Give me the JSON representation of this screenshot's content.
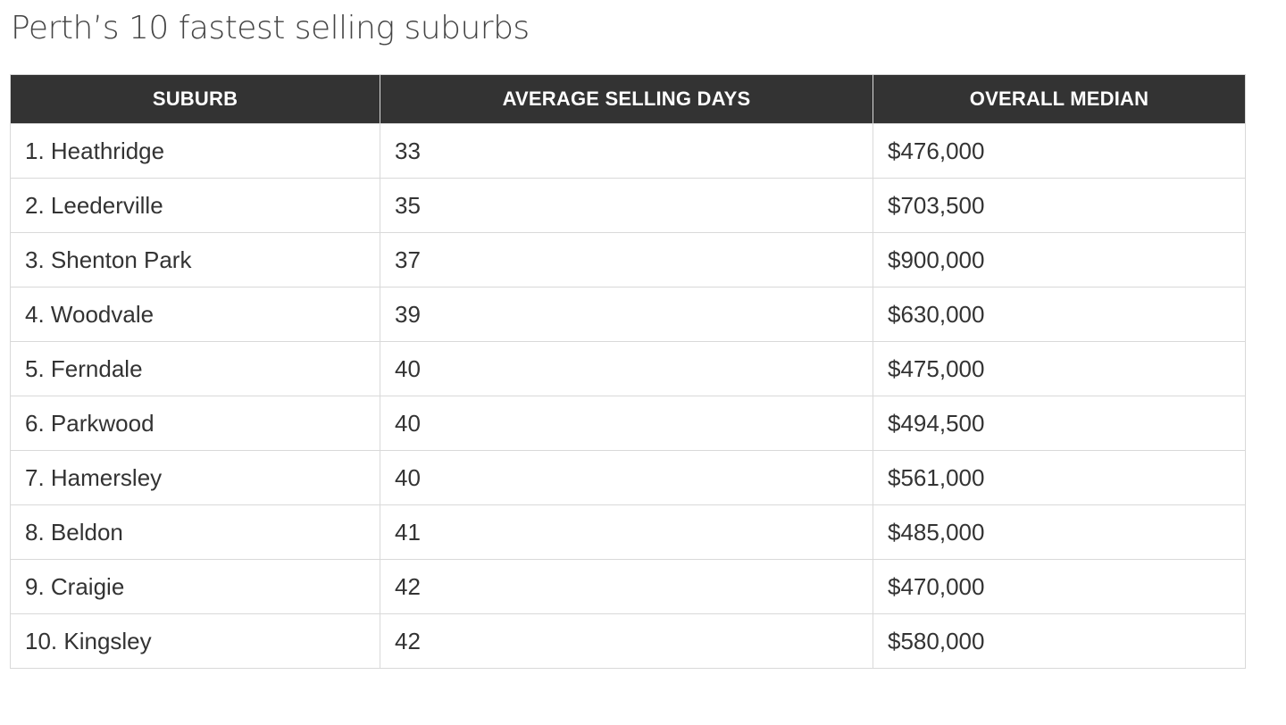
{
  "title": "Perth’s 10 fastest selling suburbs",
  "chart_data": {
    "type": "table",
    "title": "Perth’s 10 fastest selling suburbs",
    "columns": [
      "SUBURB",
      "AVERAGE SELLING DAYS",
      "OVERALL MEDIAN"
    ],
    "rows": [
      [
        "1. Heathridge",
        "33",
        "$476,000"
      ],
      [
        "2. Leederville",
        "35",
        "$703,500"
      ],
      [
        "3. Shenton Park",
        "37",
        "$900,000"
      ],
      [
        "4. Woodvale",
        "39",
        "$630,000"
      ],
      [
        "5. Ferndale",
        "40",
        "$475,000"
      ],
      [
        "6. Parkwood",
        "40",
        "$494,500"
      ],
      [
        "7. Hamersley",
        "40",
        "$561,000"
      ],
      [
        "8. Beldon",
        "41",
        "$485,000"
      ],
      [
        "9. Craigie",
        "42",
        "$470,000"
      ],
      [
        "10. Kingsley",
        "42",
        "$580,000"
      ]
    ]
  },
  "colors": {
    "header_bg": "#333333",
    "header_text": "#ffffff",
    "cell_text": "#333333",
    "border": "#d9d9d9",
    "title_text": "#444444"
  }
}
